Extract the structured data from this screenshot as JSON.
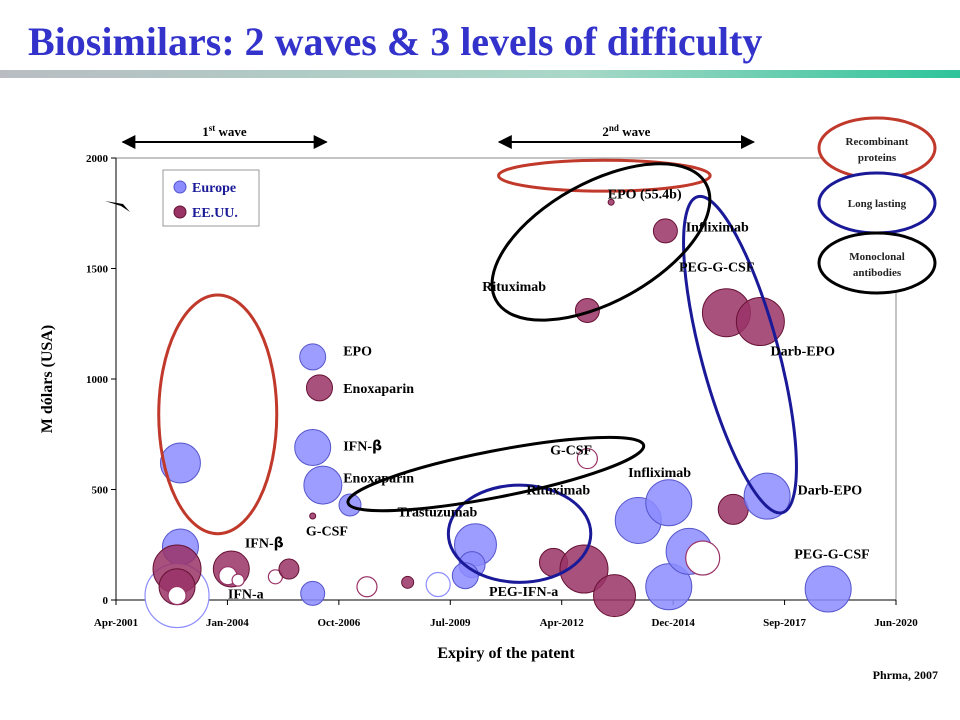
{
  "title": "Biosimilars: 2 waves & 3 levels of difficulty",
  "source": "Phrma, 2007",
  "colors": {
    "europe": "#8c8cff",
    "usa": "#993366",
    "recombinant": "#c0392b",
    "long_lasting": "#1a1a99",
    "monoclonal": "#000000",
    "title": "#3333cc"
  },
  "waves": [
    {
      "text": "1",
      "sup": "st",
      "suffix": " wave",
      "from": "2001-06",
      "to": "2006-06"
    },
    {
      "text": "2",
      "sup": "nd",
      "suffix": " wave",
      "from": "2010-09",
      "to": "2016-12"
    }
  ],
  "key": [
    {
      "text1": "Recombinant",
      "text2": "proteins",
      "group": "recombinant"
    },
    {
      "text1": "Long lasting",
      "text2": "",
      "group": "long_lasting"
    },
    {
      "text1": "Monoclonal",
      "text2": "antibodies",
      "group": "monoclonal"
    }
  ],
  "chart_data": {
    "type": "scatter",
    "title": "Biosimilars: 2 waves & 3 levels of difficulty",
    "xlabel": "Expiry of the patent",
    "ylabel": "M dólars (USA)",
    "x_range": [
      "2001-04",
      "2020-06"
    ],
    "x_ticks": [
      "Apr-2001",
      "Jan-2004",
      "Oct-2006",
      "Jul-2009",
      "Apr-2012",
      "Dec-2014",
      "Sep-2017",
      "Jun-2020"
    ],
    "ylim": [
      0,
      2000
    ],
    "y_ticks": [
      0,
      500,
      1000,
      1500,
      2000
    ],
    "grid": false,
    "legend_position": "top-left",
    "legend": [
      {
        "label": "Europe",
        "series": "europe"
      },
      {
        "label": "EE.UU.",
        "series": "usa"
      }
    ],
    "points": [
      {
        "x": "2002-11",
        "y": 620,
        "r": 20,
        "series": "europe"
      },
      {
        "x": "2002-11",
        "y": 240,
        "r": 18,
        "series": "europe"
      },
      {
        "x": "2002-10",
        "y": 20,
        "r": 32,
        "series": "europe",
        "hollow": true
      },
      {
        "x": "2002-10",
        "y": 140,
        "r": 24,
        "series": "usa"
      },
      {
        "x": "2002-10",
        "y": 60,
        "r": 18,
        "series": "usa"
      },
      {
        "x": "2002-10",
        "y": 20,
        "r": 9,
        "series": "usa",
        "hollow": true
      },
      {
        "x": "2004-02",
        "y": 140,
        "r": 18,
        "series": "usa"
      },
      {
        "x": "2004-01",
        "y": 110,
        "r": 9,
        "series": "usa",
        "hollow": true
      },
      {
        "x": "2004-04",
        "y": 90,
        "r": 6,
        "series": "usa",
        "hollow": true
      },
      {
        "x": "2005-03",
        "y": 105,
        "r": 7,
        "series": "usa",
        "hollow": true
      },
      {
        "x": "2006-02",
        "y": 1100,
        "r": 13,
        "series": "europe"
      },
      {
        "x": "2006-04",
        "y": 960,
        "r": 13,
        "series": "usa"
      },
      {
        "x": "2006-02",
        "y": 690,
        "r": 18,
        "series": "europe"
      },
      {
        "x": "2006-05",
        "y": 520,
        "r": 19,
        "series": "europe"
      },
      {
        "x": "2007-01",
        "y": 430,
        "r": 11,
        "series": "europe"
      },
      {
        "x": "2006-02",
        "y": 380,
        "r": 3,
        "series": "usa"
      },
      {
        "x": "2005-07",
        "y": 140,
        "r": 10,
        "series": "usa"
      },
      {
        "x": "2006-02",
        "y": 30,
        "r": 12,
        "series": "europe"
      },
      {
        "x": "2007-06",
        "y": 60,
        "r": 10,
        "series": "usa",
        "hollow": true
      },
      {
        "x": "2008-06",
        "y": 80,
        "r": 6,
        "series": "usa"
      },
      {
        "x": "2009-03",
        "y": 70,
        "r": 12,
        "series": "europe",
        "hollow": true
      },
      {
        "x": "2010-02",
        "y": 250,
        "r": 21,
        "series": "europe"
      },
      {
        "x": "2010-01",
        "y": 160,
        "r": 13,
        "series": "europe"
      },
      {
        "x": "2009-11",
        "y": 110,
        "r": 13,
        "series": "europe"
      },
      {
        "x": "2012-01",
        "y": 170,
        "r": 14,
        "series": "usa"
      },
      {
        "x": "2012-10",
        "y": 140,
        "r": 24,
        "series": "usa"
      },
      {
        "x": "2012-11",
        "y": 640,
        "r": 10,
        "series": "usa",
        "hollow": true
      },
      {
        "x": "2013-07",
        "y": 20,
        "r": 21,
        "series": "usa"
      },
      {
        "x": "2014-02",
        "y": 360,
        "r": 23,
        "series": "europe"
      },
      {
        "x": "2014-11",
        "y": 440,
        "r": 23,
        "series": "europe"
      },
      {
        "x": "2014-11",
        "y": 60,
        "r": 23,
        "series": "europe"
      },
      {
        "x": "2015-05",
        "y": 220,
        "r": 23,
        "series": "europe"
      },
      {
        "x": "2015-09",
        "y": 190,
        "r": 17,
        "series": "usa",
        "hollow": true
      },
      {
        "x": "2016-06",
        "y": 410,
        "r": 15,
        "series": "usa"
      },
      {
        "x": "2017-04",
        "y": 470,
        "r": 23,
        "series": "europe"
      },
      {
        "x": "2018-10",
        "y": 50,
        "r": 23,
        "series": "europe"
      },
      {
        "x": "2012-11",
        "y": 1310,
        "r": 12,
        "series": "usa"
      },
      {
        "x": "2014-10",
        "y": 1670,
        "r": 12,
        "series": "usa"
      },
      {
        "x": "2013-06",
        "y": 1800,
        "r": 3,
        "series": "usa"
      },
      {
        "x": "2016-04",
        "y": 1300,
        "r": 24,
        "series": "usa"
      },
      {
        "x": "2017-02",
        "y": 1260,
        "r": 24,
        "series": "usa"
      }
    ],
    "labels": [
      {
        "text": "EPO",
        "x": "2006-11",
        "y": 1130
      },
      {
        "text": "Enoxaparin",
        "x": "2006-11",
        "y": 960
      },
      {
        "text": "IFN-",
        "sym": "β",
        "x": "2006-11",
        "y": 700
      },
      {
        "text": "Enoxaparin",
        "x": "2006-11",
        "y": 555
      },
      {
        "text": "G-CSF",
        "x": "2005-12",
        "y": 315
      },
      {
        "text": "IFN-",
        "sym": "β",
        "x": "2004-06",
        "y": 260
      },
      {
        "text": "IFN-a",
        "x": "2004-01",
        "y": 30
      },
      {
        "text": "Trastuzumab",
        "x": "2008-03",
        "y": 400
      },
      {
        "text": "PEG-IFN-a",
        "x": "2010-06",
        "y": 40
      },
      {
        "text": "G-CSF",
        "x": "2011-12",
        "y": 680
      },
      {
        "text": "Rituximab",
        "x": "2011-05",
        "y": 500
      },
      {
        "text": "Infliximab",
        "x": "2013-11",
        "y": 580
      },
      {
        "text": "Darb-EPO",
        "x": "2018-01",
        "y": 500
      },
      {
        "text": "PEG-G-CSF",
        "x": "2017-12",
        "y": 210
      },
      {
        "text": "EPO (55.4b)",
        "x": "2013-05",
        "y": 1840
      },
      {
        "text": "Infliximab",
        "x": "2015-04",
        "y": 1690
      },
      {
        "text": "Rituximab",
        "x": "2010-04",
        "y": 1420
      },
      {
        "text": "PEG-G-CSF",
        "x": "2015-02",
        "y": 1510
      },
      {
        "text": "Darb-EPO",
        "x": "2017-05",
        "y": 1130
      }
    ],
    "groups": [
      {
        "group": "recombinant",
        "cx": "2003-10",
        "cy": 840,
        "rx": 1.45,
        "ry": 540,
        "angle": 0
      },
      {
        "group": "recombinant",
        "cx": "2013-04",
        "cy": 1920,
        "rx": 2.6,
        "ry": 70,
        "angle": 0
      },
      {
        "group": "long_lasting",
        "cx": "2011-03",
        "cy": 300,
        "rx": 1.75,
        "ry": 220,
        "angle": 0
      },
      {
        "group": "long_lasting",
        "cx": "2016-08",
        "cy": 1110,
        "rx": 0.95,
        "ry": 740,
        "angle": -15
      },
      {
        "group": "monoclonal",
        "cx": "2010-08",
        "cy": 570,
        "rx": 3.7,
        "ry": 105,
        "angle": -11
      },
      {
        "group": "monoclonal",
        "cx": "2013-03",
        "cy": 1620,
        "rx": 2.95,
        "ry": 270,
        "angle": -29
      }
    ]
  }
}
